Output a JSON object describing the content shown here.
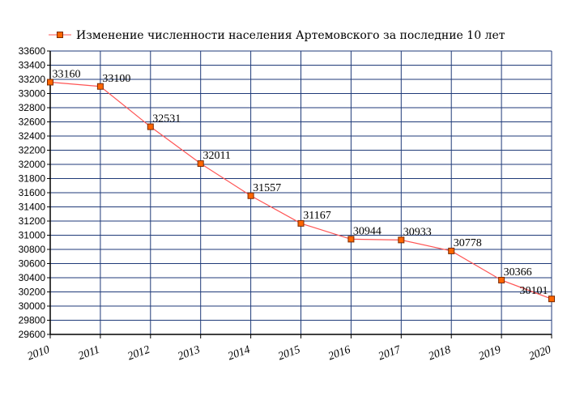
{
  "chart_data": {
    "type": "line",
    "legend": "Изменение численности населения Артемовского за последние 10 лет",
    "legend_position": "top",
    "x": [
      "2010",
      "2011",
      "2012",
      "2013",
      "2014",
      "2015",
      "2016",
      "2017",
      "2018",
      "2019",
      "2020"
    ],
    "series": [
      {
        "name": "Изменение численности населения Артемовского за последние 10 лет",
        "values": [
          33160,
          33100,
          32531,
          32011,
          31557,
          31167,
          30944,
          30933,
          30778,
          30366,
          30101
        ],
        "labels": [
          "33160",
          "33100",
          "32531",
          "32011",
          "31557",
          "31167",
          "30944",
          "30933",
          "30778",
          "30366",
          "30101"
        ]
      }
    ],
    "ylim": [
      29600,
      33600
    ],
    "yticks": [
      "29600",
      "29800",
      "30000",
      "30200",
      "30400",
      "30600",
      "30800",
      "31000",
      "31200",
      "31400",
      "31600",
      "31800",
      "32000",
      "32200",
      "32400",
      "32600",
      "32800",
      "33000",
      "33200",
      "33400",
      "33600"
    ],
    "grid": true,
    "colors": {
      "line": "#ff5555",
      "marker_fill": "#ff6600",
      "marker_stroke": "#7a2a00",
      "grid": "#1f3a78",
      "axis": "#000000"
    }
  }
}
